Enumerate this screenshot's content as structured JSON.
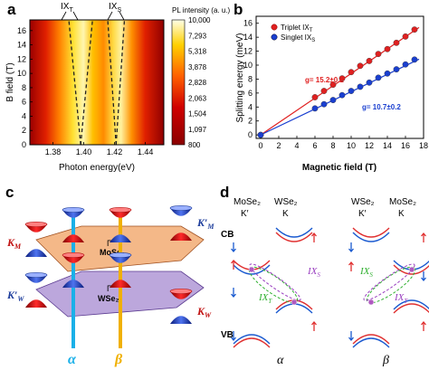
{
  "panels": {
    "a": {
      "label": "a",
      "top_labels": [
        "IX",
        "IX"
      ],
      "top_subs": [
        "T",
        "S"
      ],
      "ylabel": "B field (T)",
      "xlabel": "Photon energy(eV)",
      "yticks": [
        "0",
        "2",
        "4",
        "6",
        "8",
        "10",
        "12",
        "14",
        "16"
      ],
      "xticks": [
        "1.38",
        "1.40",
        "1.42",
        "1.44"
      ],
      "colorbar": {
        "title": "PL intensity (a. u.)",
        "ticks": [
          "10,000",
          "7,293",
          "5,318",
          "3,878",
          "2,828",
          "2,063",
          "1,504",
          "1,097",
          "800"
        ]
      }
    },
    "b": {
      "label": "b",
      "legend": [
        {
          "text": "Triplet IX",
          "sub": "T",
          "color": "#e02020"
        },
        {
          "text": "Singlet IX",
          "sub": "S",
          "color": "#1a3fd0"
        }
      ],
      "fit_labels": [
        "g= 15.2±0.2",
        "g= 10.7±0.2"
      ],
      "ylabel": "Splitting energy (meV)",
      "xlabel": "Magnetic field (T)",
      "yticks": [
        "0",
        "2",
        "4",
        "6",
        "8",
        "10",
        "12",
        "14",
        "16"
      ],
      "xticks": [
        "0",
        "2",
        "4",
        "6",
        "8",
        "10",
        "12",
        "14",
        "16",
        "18"
      ]
    },
    "c": {
      "label": "c",
      "valley_labels": {
        "KM": "K",
        "KM_sub": "M",
        "KMp": "K′",
        "KMp_sub": "M",
        "KWp": "K′",
        "KWp_sub": "W",
        "KW": "K",
        "KW_sub": "W",
        "gamma1": "Γ",
        "gamma2": "Γ"
      },
      "layers": [
        "MoSe₂",
        "WSe₂"
      ],
      "stackings": [
        "α",
        "β"
      ]
    },
    "d": {
      "label": "d",
      "left_headers": [
        "MoSe₂",
        "K′",
        "WSe₂",
        "K"
      ],
      "right_headers": [
        "WSe₂",
        "K′",
        "MoSe₂",
        "K"
      ],
      "band_labels": [
        "CB",
        "VB"
      ],
      "exciton_labels": [
        "IX",
        "S",
        "IX",
        "T"
      ],
      "stackings": [
        "α",
        "β"
      ]
    }
  },
  "chart_data": [
    {
      "type": "heatmap",
      "panel": "a",
      "xlabel": "Photon energy(eV)",
      "ylabel": "B field (T)",
      "xlim": [
        1.365,
        1.452
      ],
      "ylim": [
        0,
        17.5
      ],
      "x_ticks": [
        1.38,
        1.4,
        1.42,
        1.44
      ],
      "y_ticks": [
        0,
        2,
        4,
        6,
        8,
        10,
        12,
        14,
        16
      ],
      "colorbar_range": [
        800,
        10000
      ],
      "peaks": [
        {
          "name": "IX_T",
          "energy_at_0T": 1.398,
          "slope_eV_per_T": -0.00044
        },
        {
          "name": "IX_S",
          "energy_at_0T": 1.421,
          "slope_eV_per_T": -0.00031
        }
      ]
    },
    {
      "type": "scatter",
      "panel": "b",
      "xlabel": "Magnetic field (T)",
      "ylabel": "Splitting energy (meV)",
      "xlim": [
        -0.5,
        18
      ],
      "ylim": [
        -0.5,
        17
      ],
      "series": [
        {
          "name": "Triplet IX_T",
          "color": "#e02020",
          "x": [
            0,
            6,
            7,
            8,
            9,
            10,
            11,
            12,
            13,
            14,
            15,
            16,
            17
          ],
          "y": [
            0,
            5.4,
            6.3,
            7.2,
            8.1,
            9.0,
            9.9,
            10.6,
            11.6,
            12.3,
            13.2,
            14.1,
            15.1
          ],
          "fit_slope": 0.88
        },
        {
          "name": "Singlet IX_S",
          "color": "#1a3fd0",
          "x": [
            0,
            6,
            7,
            8,
            9,
            10,
            11,
            12,
            13,
            14,
            15,
            16,
            17
          ],
          "y": [
            0,
            3.8,
            4.4,
            5.0,
            5.7,
            6.3,
            6.9,
            7.5,
            8.2,
            8.8,
            9.4,
            10.1,
            10.8
          ],
          "fit_slope": 0.62
        }
      ]
    }
  ]
}
